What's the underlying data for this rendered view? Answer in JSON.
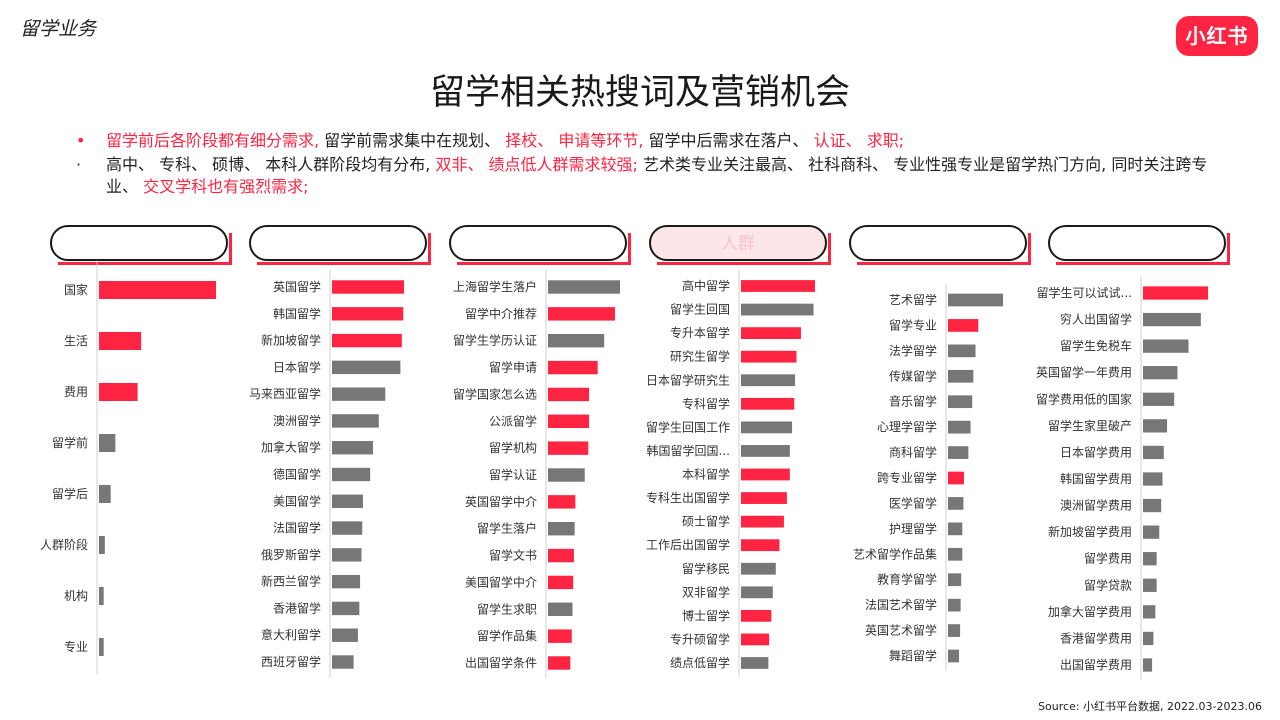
{
  "header": {
    "section_label": "留学业务",
    "logo_text": "小红书",
    "title": "留学相关热搜词及营销机会"
  },
  "bullets": [
    {
      "parts": [
        {
          "text": "留学前后各阶段都有细分需求,",
          "highlight": true
        },
        {
          "text": " 留学前需求集中在规划、 ",
          "highlight": false
        },
        {
          "text": "择校、 申请等环节,",
          "highlight": true
        },
        {
          "text": " 留学中后需求在落户、 ",
          "highlight": false
        },
        {
          "text": "认证、 求职;",
          "highlight": true
        }
      ]
    },
    {
      "parts": [
        {
          "text": "高中、 专科、 硕博、 本科人群阶段均有分布, ",
          "highlight": false
        },
        {
          "text": "双非、 绩点低人群需求较强;",
          "highlight": true
        },
        {
          "text": " 艺术类专业关注最高、 社科商科、 专业性强专业是留学热门方向, 同时关注跨专业、 ",
          "highlight": false
        },
        {
          "text": "交叉学科也有强烈需求;",
          "highlight": true
        }
      ]
    }
  ],
  "panel_headers": [
    "",
    "",
    "",
    "人群",
    "",
    ""
  ],
  "colors": {
    "accent": "#ff2442",
    "neutral": "#777777"
  },
  "source": "Source: 小红书平台数据, 2022.03-2023.06",
  "chart_data": [
    {
      "type": "bar",
      "orientation": "horizontal",
      "categories": [
        "国家",
        "生活",
        "费用",
        "留学前",
        "留学后",
        "人群阶段",
        "机构",
        "专业"
      ],
      "values": [
        100,
        36,
        33,
        14,
        10,
        5,
        4,
        4
      ],
      "highlight": [
        true,
        true,
        true,
        false,
        false,
        false,
        false,
        false
      ]
    },
    {
      "type": "bar",
      "orientation": "horizontal",
      "categories": [
        "英国留学",
        "韩国留学",
        "新加坡留学",
        "日本留学",
        "马来西亚留学",
        "澳洲留学",
        "加拿大留学",
        "德国留学",
        "美国留学",
        "法国留学",
        "俄罗斯留学",
        "新西兰留学",
        "香港留学",
        "意大利留学",
        "西班牙留学"
      ],
      "values": [
        100,
        99,
        97,
        95,
        74,
        65,
        57,
        53,
        43,
        42,
        41,
        39,
        38,
        36,
        30
      ],
      "highlight": [
        true,
        true,
        true,
        false,
        false,
        false,
        false,
        false,
        false,
        false,
        false,
        false,
        false,
        false,
        false
      ]
    },
    {
      "type": "bar",
      "orientation": "horizontal",
      "categories": [
        "上海留学生落户",
        "留学中介推荐",
        "留学生学历认证",
        "留学申请",
        "留学国家怎么选",
        "公派留学",
        "留学机构",
        "留学认证",
        "英国留学中介",
        "留学生落户",
        "留学文书",
        "美国留学中介",
        "留学生求职",
        "留学作品集",
        "出国留学条件"
      ],
      "values": [
        100,
        93,
        78,
        69,
        57,
        57,
        56,
        51,
        38,
        37,
        36,
        35,
        34,
        33,
        31
      ],
      "highlight": [
        false,
        true,
        false,
        true,
        true,
        true,
        true,
        false,
        true,
        false,
        true,
        true,
        false,
        true,
        true
      ]
    },
    {
      "type": "bar",
      "orientation": "horizontal",
      "categories": [
        "高中留学",
        "留学生回国",
        "专升本留学",
        "研究生留学",
        "日本留学研究生",
        "专科留学",
        "留学生回国工作",
        "韩国留学回国...",
        "本科留学",
        "专科生出国留学",
        "硕士留学",
        "工作后出国留学",
        "留学移民",
        "双非留学",
        "博士留学",
        "专升硕留学",
        "绩点低留学"
      ],
      "values": [
        100,
        98,
        81,
        75,
        73,
        72,
        69,
        66,
        66,
        62,
        58,
        52,
        47,
        43,
        41,
        38,
        37
      ],
      "highlight": [
        true,
        false,
        true,
        true,
        false,
        true,
        false,
        false,
        true,
        true,
        true,
        true,
        false,
        false,
        true,
        true,
        false
      ]
    },
    {
      "type": "bar",
      "orientation": "horizontal",
      "categories": [
        "艺术留学",
        "留学专业",
        "法学留学",
        "传媒留学",
        "音乐留学",
        "心理学留学",
        "商科留学",
        "跨专业留学",
        "医学留学",
        "护理留学",
        "艺术留学作品集",
        "教育学留学",
        "法国艺术留学",
        "英国艺术留学",
        "舞蹈留学"
      ],
      "values": [
        100,
        55,
        50,
        46,
        44,
        41,
        37,
        29,
        28,
        26,
        26,
        24,
        23,
        22,
        20
      ],
      "highlight": [
        false,
        true,
        false,
        false,
        false,
        false,
        false,
        true,
        false,
        false,
        false,
        false,
        false,
        false,
        false
      ]
    },
    {
      "type": "bar",
      "orientation": "horizontal",
      "categories": [
        "留学生可以试试...",
        "穷人出国留学",
        "留学生免税车",
        "英国留学一年费用",
        "留学费用低的国家",
        "留学生家里破产",
        "日本留学费用",
        "韩国留学费用",
        "澳洲留学费用",
        "新加坡留学费用",
        "留学费用",
        "留学贷款",
        "加拿大留学费用",
        "香港留学费用",
        "出国留学费用"
      ],
      "values": [
        100,
        89,
        70,
        53,
        48,
        37,
        32,
        30,
        28,
        25,
        21,
        21,
        19,
        16,
        14
      ],
      "highlight": [
        true,
        false,
        false,
        false,
        false,
        false,
        false,
        false,
        false,
        false,
        false,
        false,
        false,
        false,
        false
      ]
    }
  ]
}
